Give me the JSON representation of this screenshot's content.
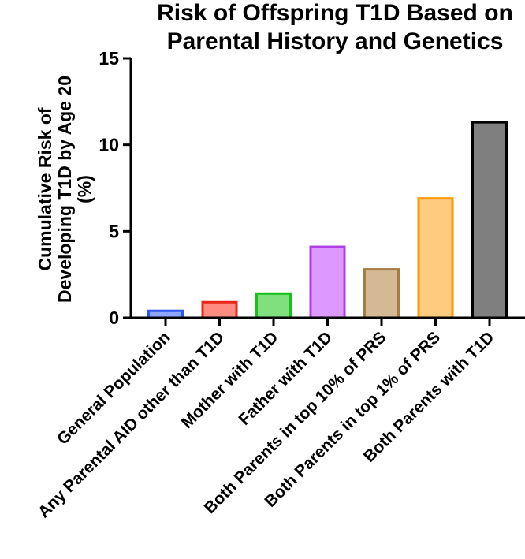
{
  "chart_data": {
    "type": "bar",
    "title_line1": "Risk of Offspring T1D Based on",
    "title_line2": "Parental History and Genetics",
    "ylabel_line1": "Cumulative Risk of",
    "ylabel_line2": "Developing T1D by Age 20",
    "ylabel_line3": "(%)",
    "xlabel": "",
    "ylim": [
      0,
      15
    ],
    "yticks": [
      0,
      5,
      10,
      15
    ],
    "categories": [
      "General Population",
      "Any Parental AID other than T1D",
      "Mother with T1D",
      "Father with T1D",
      "Both Parents in top 10% of PRS",
      "Both Parents in top 1% of PRS",
      "Both Parents with T1D"
    ],
    "values": [
      0.4,
      0.9,
      1.4,
      4.1,
      2.8,
      6.9,
      11.3
    ],
    "fill_colors": [
      "#8ea6ff",
      "#ff8c80",
      "#80e080",
      "#dd99ff",
      "#d4b994",
      "#ffcb7f",
      "#7f7f7f"
    ],
    "stroke_colors": [
      "#2e57f0",
      "#e8261a",
      "#19c019",
      "#b23ee8",
      "#a67c45",
      "#ff9a00",
      "#000000"
    ]
  }
}
